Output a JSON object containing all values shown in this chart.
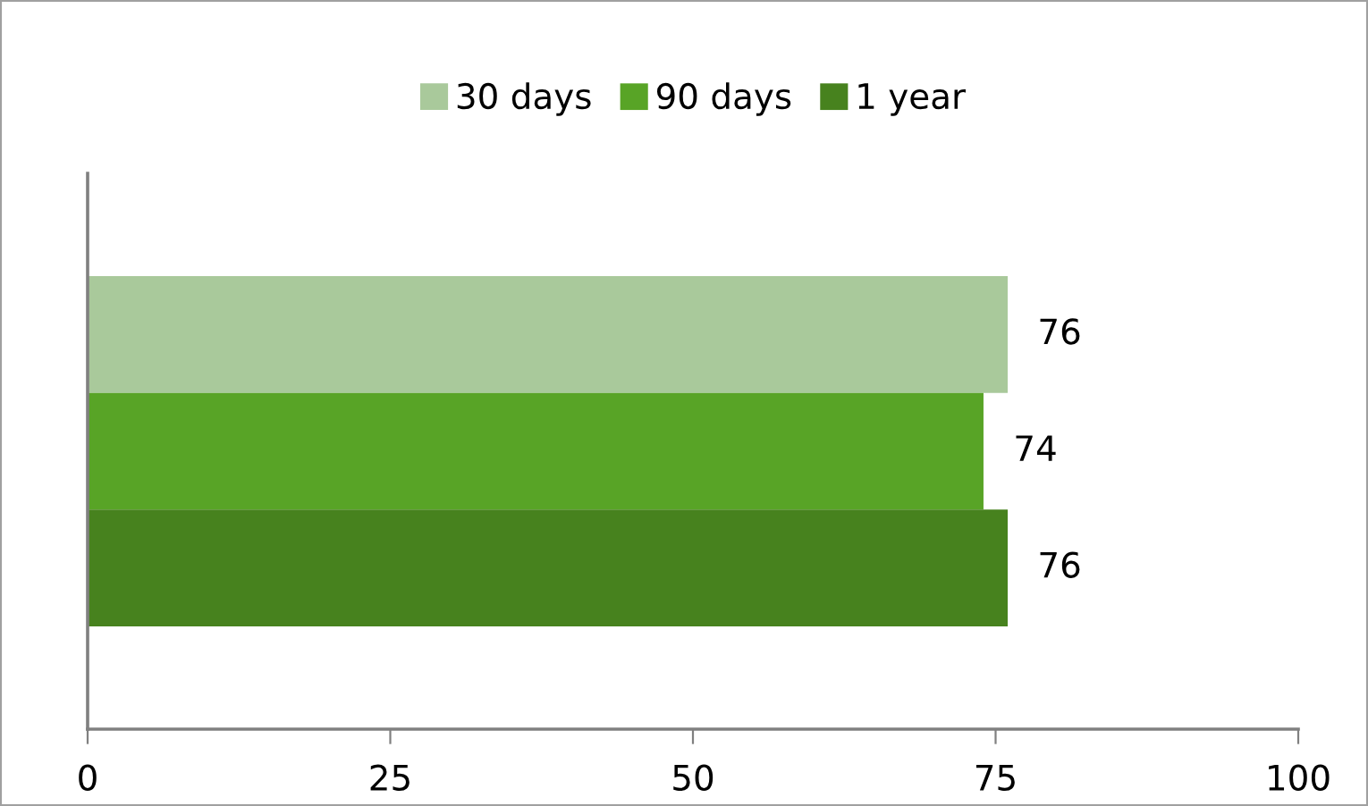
{
  "chart_data": {
    "type": "bar",
    "orientation": "horizontal",
    "categories": [
      null
    ],
    "series": [
      {
        "name": "30 days",
        "color": "#a9c99b",
        "values": [
          76
        ]
      },
      {
        "name": "90 days",
        "color": "#58a426",
        "values": [
          74
        ]
      },
      {
        "name": "1 year",
        "color": "#47821e",
        "values": [
          76
        ]
      }
    ],
    "xlim": [
      0,
      100
    ],
    "xticks": [
      0,
      25,
      50,
      75,
      100
    ],
    "grid": false,
    "legend": "top",
    "data_labels": true
  }
}
